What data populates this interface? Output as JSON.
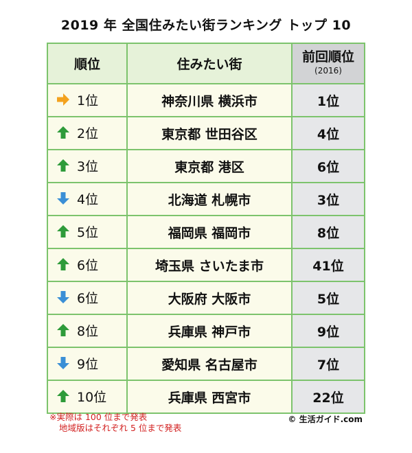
{
  "title": "2019 年 全国住みたい街ランキング トップ 10",
  "headers": {
    "rank": "順位",
    "city": "住みたい街",
    "prev": "前回順位",
    "prev_year": "(2016)"
  },
  "rows": [
    {
      "trend": "same",
      "rank": "1位",
      "city": "神奈川県 横浜市",
      "prev": "1位"
    },
    {
      "trend": "up",
      "rank": "2位",
      "city": "東京都 世田谷区",
      "prev": "4位"
    },
    {
      "trend": "up",
      "rank": "3位",
      "city": "東京都 港区",
      "prev": "6位"
    },
    {
      "trend": "down",
      "rank": "4位",
      "city": "北海道 札幌市",
      "prev": "3位"
    },
    {
      "trend": "up",
      "rank": "5位",
      "city": "福岡県 福岡市",
      "prev": "8位"
    },
    {
      "trend": "up",
      "rank": "6位",
      "city": "埼玉県 さいたま市",
      "prev": "41位"
    },
    {
      "trend": "down",
      "rank": "6位",
      "city": "大阪府 大阪市",
      "prev": "5位"
    },
    {
      "trend": "up",
      "rank": "8位",
      "city": "兵庫県 神戸市",
      "prev": "9位"
    },
    {
      "trend": "down",
      "rank": "9位",
      "city": "愛知県 名古屋市",
      "prev": "7位"
    },
    {
      "trend": "up",
      "rank": "10位",
      "city": "兵庫県 西宮市",
      "prev": "22位"
    }
  ],
  "trend_colors": {
    "up": "#2e9b3a",
    "down": "#3a8fd6",
    "same": "#f3a21e"
  },
  "note": {
    "line1": "※実際は 100 位まで発表",
    "line2": "地域版はそれぞれ 5 位まで発表"
  },
  "copyright": "© 生活ガイド.com"
}
